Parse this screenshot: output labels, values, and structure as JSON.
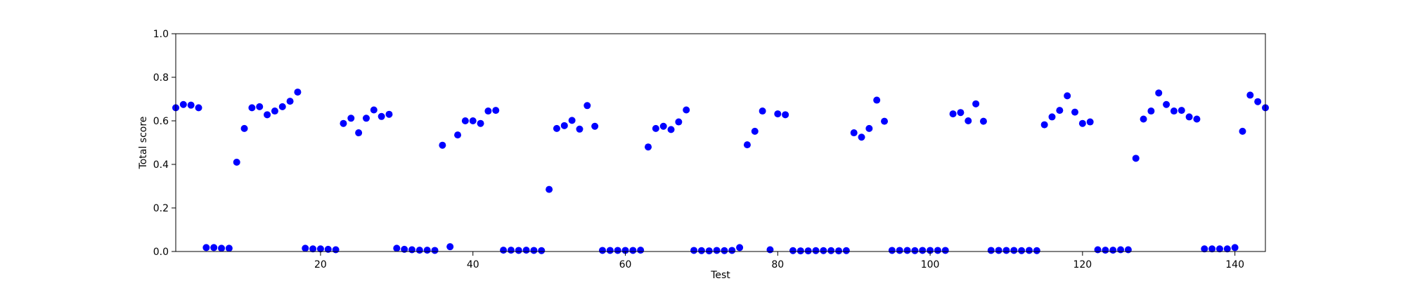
{
  "chart_data": {
    "type": "scatter",
    "title": "",
    "xlabel": "Test",
    "ylabel": "Total score",
    "xlim": [
      1,
      144
    ],
    "ylim": [
      0.0,
      1.0
    ],
    "xticks": [
      20,
      40,
      60,
      80,
      100,
      120,
      140
    ],
    "xtick_labels": [
      "20",
      "40",
      "60",
      "80",
      "100",
      "120",
      "140"
    ],
    "yticks": [
      0.0,
      0.2,
      0.4,
      0.6,
      0.8,
      1.0
    ],
    "ytick_labels": [
      "0.0",
      "0.2",
      "0.4",
      "0.6",
      "0.8",
      "1.0"
    ],
    "grid": false,
    "marker_color": "#0000ff",
    "series": [
      {
        "x": [
          1,
          2,
          3,
          4,
          5,
          6,
          7,
          8,
          9,
          10,
          11,
          12,
          13,
          14,
          15,
          16,
          17,
          18,
          19,
          20,
          21,
          22,
          23,
          24,
          25,
          26,
          27,
          28,
          29,
          30,
          31,
          32,
          33,
          34,
          35,
          36,
          37,
          38,
          39,
          40,
          41,
          42,
          43,
          44,
          45,
          46,
          47,
          48,
          49,
          50,
          51,
          52,
          53,
          54,
          55,
          56,
          57,
          58,
          59,
          60,
          61,
          62,
          63,
          64,
          65,
          66,
          67,
          68,
          69,
          70,
          71,
          72,
          73,
          74,
          75,
          76,
          77,
          78,
          79,
          80,
          81,
          82,
          83,
          84,
          85,
          86,
          87,
          88,
          89,
          90,
          91,
          92,
          93,
          94,
          95,
          96,
          97,
          98,
          99,
          100,
          101,
          102,
          103,
          104,
          105,
          106,
          107,
          108,
          109,
          110,
          111,
          112,
          113,
          114,
          115,
          116,
          117,
          118,
          119,
          120,
          121,
          122,
          123,
          124,
          125,
          126,
          127,
          128,
          129,
          130,
          131,
          132,
          133,
          134,
          135,
          136,
          137,
          138,
          139,
          140,
          141,
          142,
          143,
          144
        ],
        "y": [
          0.66,
          0.675,
          0.672,
          0.66,
          0.018,
          0.018,
          0.015,
          0.015,
          0.41,
          0.565,
          0.66,
          0.665,
          0.628,
          0.645,
          0.665,
          0.69,
          0.732,
          0.015,
          0.012,
          0.012,
          0.01,
          0.008,
          0.588,
          0.612,
          0.545,
          0.612,
          0.65,
          0.62,
          0.63,
          0.015,
          0.01,
          0.008,
          0.006,
          0.006,
          0.005,
          0.488,
          0.022,
          0.535,
          0.6,
          0.6,
          0.588,
          0.645,
          0.648,
          0.006,
          0.006,
          0.005,
          0.006,
          0.005,
          0.004,
          0.285,
          0.565,
          0.578,
          0.602,
          0.562,
          0.67,
          0.575,
          0.005,
          0.005,
          0.005,
          0.005,
          0.005,
          0.006,
          0.48,
          0.565,
          0.575,
          0.56,
          0.595,
          0.65,
          0.005,
          0.004,
          0.003,
          0.005,
          0.004,
          0.005,
          0.018,
          0.49,
          0.552,
          0.645,
          0.008,
          0.632,
          0.628,
          0.004,
          0.003,
          0.003,
          0.004,
          0.004,
          0.004,
          0.003,
          0.004,
          0.545,
          0.525,
          0.565,
          0.695,
          0.598,
          0.005,
          0.005,
          0.005,
          0.004,
          0.005,
          0.005,
          0.005,
          0.005,
          0.632,
          0.638,
          0.6,
          0.678,
          0.598,
          0.005,
          0.005,
          0.005,
          0.005,
          0.004,
          0.005,
          0.004,
          0.582,
          0.618,
          0.648,
          0.715,
          0.64,
          0.588,
          0.595,
          0.008,
          0.006,
          0.006,
          0.008,
          0.008,
          0.428,
          0.608,
          0.645,
          0.728,
          0.675,
          0.645,
          0.648,
          0.618,
          0.608,
          0.012,
          0.012,
          0.012,
          0.012,
          0.018,
          0.552,
          0.718,
          0.688,
          0.66
        ]
      }
    ]
  }
}
